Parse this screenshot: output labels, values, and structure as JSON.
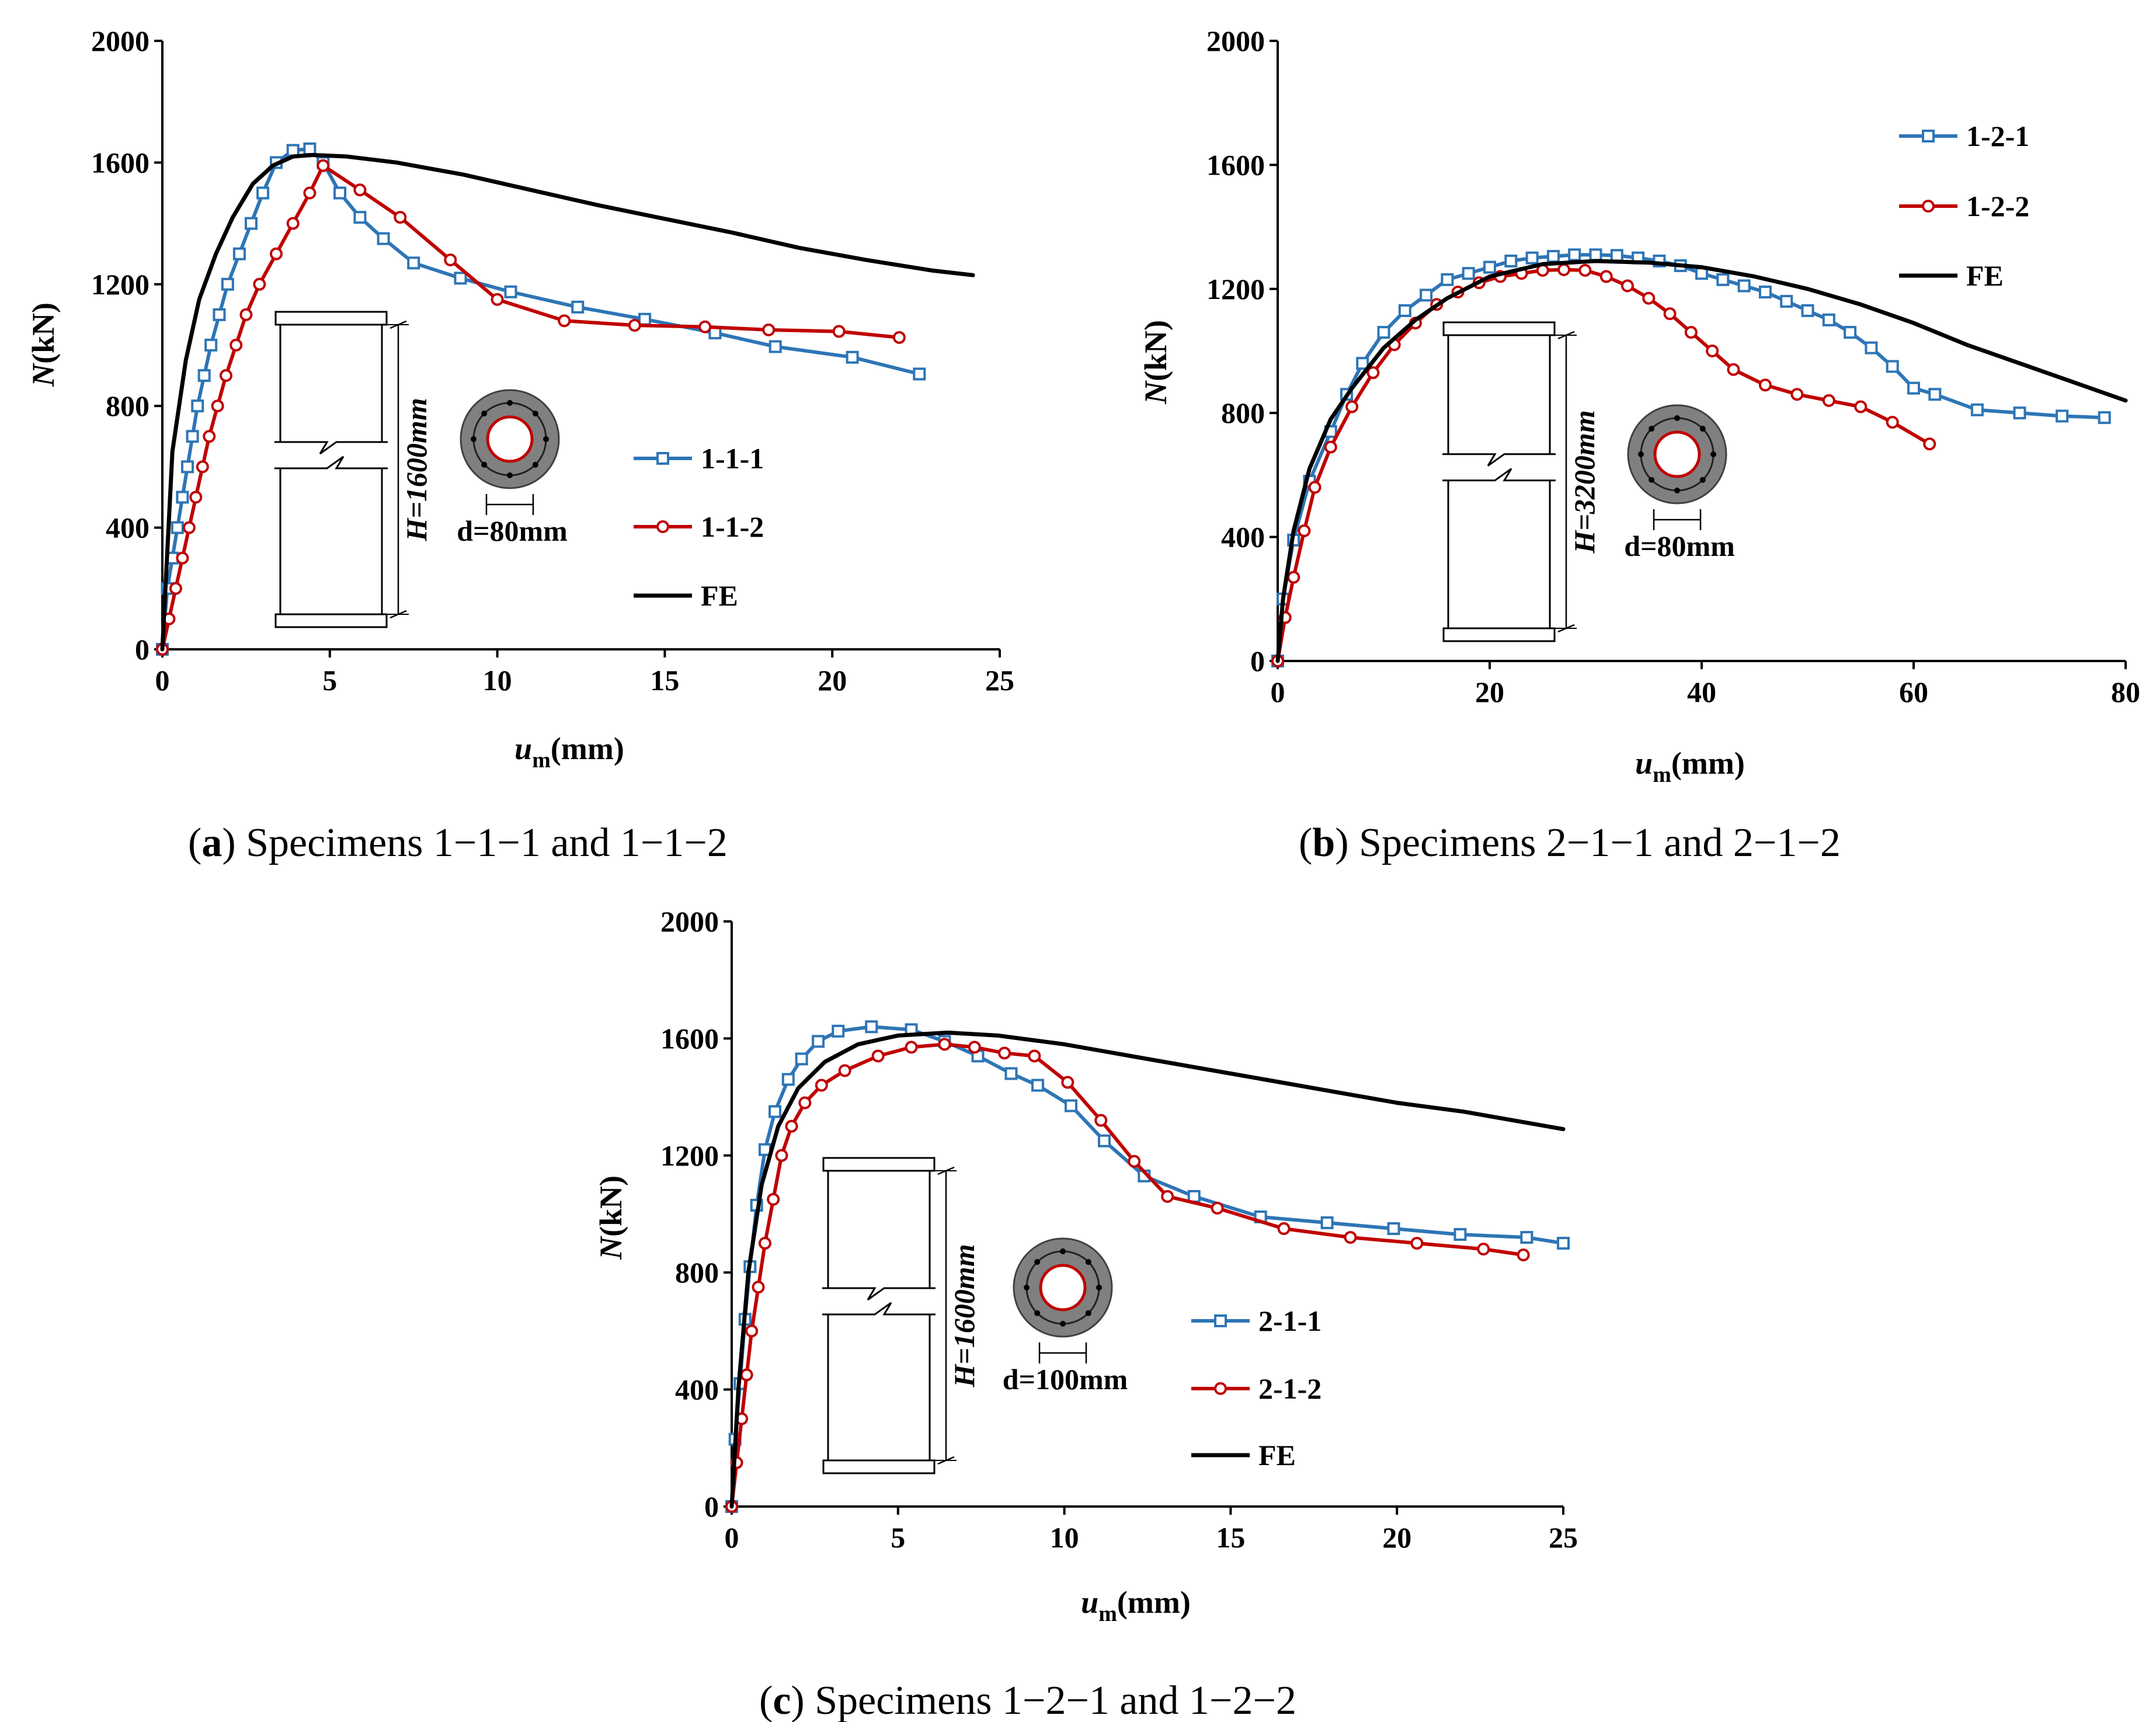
{
  "chart_data": [
    {
      "type": "line",
      "caption_letter": "a",
      "caption_text": "Specimens 1−1−1 and 1−1−2",
      "xlabel_main": "u",
      "xlabel_sub": "m",
      "xlabel_unit": "(mm)",
      "ylabel_main": "N",
      "ylabel_unit": "(kN)",
      "xlim": [
        0,
        25
      ],
      "ylim": [
        0,
        2000
      ],
      "xticks": [
        "0",
        "5",
        "10",
        "15",
        "20",
        "25"
      ],
      "yticks": [
        "0",
        "400",
        "800",
        "1200",
        "1600",
        "2000"
      ],
      "grid": false,
      "legend_position": "right",
      "inset": {
        "height_label": "H=1600mm",
        "diameter_label": "d=80mm"
      },
      "series": [
        {
          "name": "1-1-1",
          "color": "#2E75B6",
          "marker": "square",
          "x": [
            0,
            0.15,
            0.3,
            0.45,
            0.6,
            0.75,
            0.9,
            1.05,
            1.25,
            1.45,
            1.7,
            1.95,
            2.3,
            2.65,
            3.0,
            3.4,
            3.9,
            4.4,
            4.8,
            5.3,
            5.9,
            6.6,
            7.5,
            8.9,
            10.4,
            12.4,
            14.4,
            16.5,
            18.3,
            20.6,
            22.6
          ],
          "y": [
            0,
            200,
            300,
            400,
            500,
            600,
            700,
            800,
            900,
            1000,
            1100,
            1200,
            1300,
            1400,
            1500,
            1600,
            1640,
            1645,
            1600,
            1500,
            1420,
            1350,
            1270,
            1220,
            1175,
            1125,
            1085,
            1040,
            995,
            960,
            905
          ]
        },
        {
          "name": "1-1-2",
          "color": "#C00000",
          "marker": "circle",
          "x": [
            0,
            0.2,
            0.4,
            0.6,
            0.8,
            1.0,
            1.2,
            1.4,
            1.65,
            1.9,
            2.2,
            2.5,
            2.9,
            3.4,
            3.9,
            4.4,
            4.8,
            5.9,
            7.1,
            8.6,
            10.0,
            12.0,
            14.1,
            16.2,
            18.1,
            20.2,
            22.0
          ],
          "y": [
            0,
            100,
            200,
            300,
            400,
            500,
            600,
            700,
            800,
            900,
            1000,
            1100,
            1200,
            1300,
            1400,
            1500,
            1590,
            1510,
            1420,
            1280,
            1150,
            1080,
            1065,
            1060,
            1050,
            1045,
            1025
          ]
        },
        {
          "name": "FE",
          "color": "#000000",
          "marker": "none",
          "x": [
            0,
            0.3,
            0.7,
            1.1,
            1.6,
            2.1,
            2.7,
            3.3,
            3.9,
            4.5,
            5.5,
            7.0,
            9.0,
            11.0,
            13.0,
            15.0,
            17.0,
            19.0,
            21.0,
            23.0,
            24.2
          ],
          "y": [
            0,
            650,
            950,
            1150,
            1300,
            1420,
            1530,
            1590,
            1620,
            1625,
            1620,
            1600,
            1560,
            1510,
            1460,
            1415,
            1370,
            1320,
            1280,
            1245,
            1230
          ]
        }
      ]
    },
    {
      "type": "line",
      "caption_letter": "b",
      "caption_text": "Specimens 2−1−1 and 2−1−2",
      "xlabel_main": "u",
      "xlabel_sub": "m",
      "xlabel_unit": "(mm)",
      "ylabel_main": "N",
      "ylabel_unit": "(kN)",
      "xlim": [
        0,
        80
      ],
      "ylim": [
        0,
        2000
      ],
      "xticks": [
        "0",
        "20",
        "40",
        "60",
        "80"
      ],
      "yticks": [
        "0",
        "400",
        "800",
        "1200",
        "1600",
        "2000"
      ],
      "grid": false,
      "legend_position": "top-right",
      "inset": {
        "height_label": "H=3200mm",
        "diameter_label": "d=80mm"
      },
      "series": [
        {
          "name": "1-2-1",
          "color": "#2E75B6",
          "marker": "square",
          "x": [
            0,
            0.5,
            1.5,
            3,
            5,
            6.5,
            8,
            10,
            12,
            14,
            16,
            18,
            20,
            22,
            24,
            26,
            28,
            30,
            32,
            34,
            36,
            38,
            40,
            42,
            44,
            46,
            48,
            50,
            52,
            54,
            56,
            58,
            60,
            62,
            66,
            70,
            74,
            78
          ],
          "y": [
            0,
            200,
            390,
            580,
            740,
            860,
            960,
            1060,
            1130,
            1180,
            1230,
            1250,
            1270,
            1290,
            1300,
            1305,
            1310,
            1310,
            1308,
            1300,
            1290,
            1275,
            1250,
            1230,
            1210,
            1190,
            1160,
            1130,
            1100,
            1060,
            1010,
            950,
            880,
            860,
            810,
            800,
            790,
            785
          ]
        },
        {
          "name": "1-2-2",
          "color": "#C00000",
          "marker": "circle",
          "x": [
            0,
            0.7,
            1.5,
            2.5,
            3.5,
            5,
            7,
            9,
            11,
            13,
            15,
            17,
            19,
            21,
            23,
            25,
            27,
            29,
            31,
            33,
            35,
            37,
            39,
            41,
            43,
            46,
            49,
            52,
            55,
            58,
            61.5
          ],
          "y": [
            0,
            140,
            270,
            420,
            560,
            690,
            820,
            930,
            1020,
            1090,
            1150,
            1190,
            1220,
            1240,
            1250,
            1260,
            1262,
            1260,
            1240,
            1210,
            1170,
            1120,
            1060,
            1000,
            940,
            890,
            860,
            840,
            820,
            770,
            700
          ]
        },
        {
          "name": "FE",
          "color": "#000000",
          "marker": "none",
          "x": [
            0,
            0.5,
            1.5,
            3,
            5,
            7,
            10,
            13,
            16,
            20,
            25,
            30,
            35,
            40,
            45,
            50,
            55,
            60,
            65,
            70,
            75,
            80
          ],
          "y": [
            0,
            200,
            420,
            620,
            780,
            880,
            1010,
            1100,
            1170,
            1240,
            1280,
            1290,
            1285,
            1270,
            1240,
            1200,
            1150,
            1090,
            1020,
            960,
            900,
            840
          ]
        }
      ]
    },
    {
      "type": "line",
      "caption_letter": "c",
      "caption_text": "Specimens 1−2−1 and 1−2−2",
      "xlabel_main": "u",
      "xlabel_sub": "m",
      "xlabel_unit": "(mm)",
      "ylabel_main": "N",
      "ylabel_unit": "(kN)",
      "xlim": [
        0,
        25
      ],
      "ylim": [
        0,
        2000
      ],
      "xticks": [
        "0",
        "5",
        "10",
        "15",
        "20",
        "25"
      ],
      "yticks": [
        "0",
        "400",
        "800",
        "1200",
        "1600",
        "2000"
      ],
      "grid": false,
      "legend_position": "bottom-right",
      "inset": {
        "height_label": "H=1600mm",
        "diameter_label": "d=100mm"
      },
      "series": [
        {
          "name": "2-1-1",
          "color": "#2E75B6",
          "marker": "square",
          "x": [
            0,
            0.1,
            0.25,
            0.4,
            0.55,
            0.75,
            1.0,
            1.3,
            1.7,
            2.1,
            2.6,
            3.2,
            4.2,
            5.4,
            6.4,
            7.4,
            8.4,
            9.2,
            10.2,
            11.2,
            12.4,
            13.9,
            15.9,
            17.9,
            19.9,
            21.9,
            23.9,
            25.0
          ],
          "y": [
            0,
            230,
            420,
            640,
            820,
            1030,
            1220,
            1350,
            1460,
            1530,
            1590,
            1625,
            1640,
            1630,
            1590,
            1540,
            1480,
            1440,
            1370,
            1250,
            1130,
            1060,
            990,
            970,
            950,
            930,
            920,
            900
          ]
        },
        {
          "name": "2-1-2",
          "color": "#C00000",
          "marker": "circle",
          "x": [
            0,
            0.15,
            0.3,
            0.45,
            0.6,
            0.8,
            1.0,
            1.25,
            1.5,
            1.8,
            2.2,
            2.7,
            3.4,
            4.4,
            5.4,
            6.4,
            7.3,
            8.2,
            9.1,
            10.1,
            11.1,
            12.1,
            13.1,
            14.6,
            16.6,
            18.6,
            20.6,
            22.6,
            23.8
          ],
          "y": [
            0,
            150,
            300,
            450,
            600,
            750,
            900,
            1050,
            1200,
            1300,
            1380,
            1440,
            1490,
            1540,
            1570,
            1580,
            1570,
            1550,
            1540,
            1450,
            1320,
            1180,
            1060,
            1020,
            950,
            920,
            900,
            880,
            860
          ]
        },
        {
          "name": "FE",
          "color": "#000000",
          "marker": "none",
          "x": [
            0,
            0.2,
            0.5,
            0.9,
            1.4,
            2.0,
            2.8,
            3.8,
            5.0,
            6.5,
            8,
            10,
            12,
            14,
            16,
            18,
            20,
            22,
            24,
            25
          ],
          "y": [
            0,
            400,
            800,
            1100,
            1300,
            1430,
            1520,
            1580,
            1610,
            1620,
            1610,
            1580,
            1540,
            1500,
            1460,
            1420,
            1380,
            1350,
            1310,
            1290
          ]
        }
      ]
    }
  ]
}
